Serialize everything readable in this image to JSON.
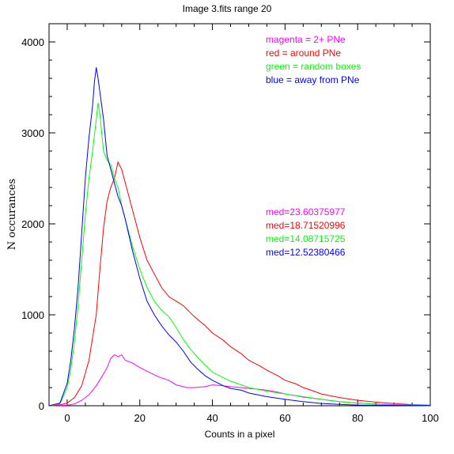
{
  "chart_data": {
    "type": "line",
    "title": "Image 3.fits   range 20",
    "xlabel": "Counts in a pixel",
    "ylabel": "N occurances",
    "xlim": [
      -5,
      100
    ],
    "ylim": [
      0,
      4200
    ],
    "xticks": [
      0,
      20,
      40,
      60,
      80,
      100
    ],
    "yticks": [
      0,
      1000,
      2000,
      3000,
      4000
    ],
    "grid": false,
    "legend_position": "top-right",
    "legend": [
      {
        "text": "magenta = 2+ PNe",
        "color": "#ff00ff"
      },
      {
        "text": "red = around PNe",
        "color": "#ff0000"
      },
      {
        "text": "green = random boxes",
        "color": "#00ff00"
      },
      {
        "text": "blue = away from PNe",
        "color": "#0000ff"
      }
    ],
    "medians": [
      {
        "text": "med=23.60375977",
        "color": "#ff00ff"
      },
      {
        "text": "med=18.71520996",
        "color": "#ff0000"
      },
      {
        "text": "med=14.08715725",
        "color": "#00ff00"
      },
      {
        "text": "med=12.52380466",
        "color": "#0000ff"
      }
    ],
    "series": [
      {
        "color": "#ff00ff",
        "x": [
          -5,
          0,
          2,
          4,
          6,
          8,
          10,
          11,
          12,
          13,
          14,
          15,
          16,
          18,
          20,
          22,
          25,
          28,
          30,
          33,
          35,
          38,
          40,
          43,
          45,
          48,
          50,
          53,
          55,
          58,
          60,
          63,
          65,
          68,
          70,
          73,
          75,
          80,
          85,
          90,
          95,
          100
        ],
        "y": [
          0,
          5,
          20,
          60,
          120,
          220,
          350,
          420,
          520,
          560,
          540,
          560,
          500,
          470,
          420,
          380,
          320,
          280,
          230,
          200,
          200,
          210,
          230,
          220,
          210,
          200,
          190,
          180,
          170,
          150,
          130,
          110,
          95,
          80,
          70,
          55,
          45,
          30,
          20,
          12,
          8,
          5
        ]
      },
      {
        "color": "#ff0000",
        "x": [
          -5,
          -2,
          0,
          2,
          4,
          6,
          7,
          8,
          9,
          10,
          11,
          12,
          13,
          14,
          15,
          16,
          17,
          18,
          19,
          20,
          22,
          24,
          26,
          28,
          30,
          32,
          35,
          38,
          40,
          43,
          45,
          48,
          50,
          53,
          55,
          58,
          60,
          63,
          65,
          68,
          70,
          75,
          80,
          85,
          90,
          95,
          100
        ],
        "y": [
          0,
          10,
          30,
          90,
          220,
          500,
          750,
          1000,
          1500,
          1950,
          2250,
          2400,
          2500,
          2680,
          2600,
          2450,
          2300,
          2150,
          2000,
          1850,
          1600,
          1450,
          1300,
          1200,
          1150,
          1100,
          980,
          880,
          800,
          720,
          650,
          570,
          500,
          440,
          390,
          330,
          280,
          240,
          200,
          160,
          130,
          90,
          60,
          40,
          25,
          12,
          5
        ]
      },
      {
        "color": "#00ff00",
        "x": [
          -5,
          -2,
          0,
          1,
          2,
          3,
          4,
          5,
          6,
          7,
          8,
          8.5,
          9,
          10,
          11,
          12,
          13,
          14,
          15,
          16,
          18,
          20,
          22,
          24,
          26,
          28,
          30,
          32,
          34,
          36,
          38,
          40,
          43,
          45,
          48,
          50,
          55,
          60,
          65,
          70,
          75,
          80,
          85,
          90,
          95,
          100
        ],
        "y": [
          0,
          20,
          200,
          400,
          700,
          1100,
          1600,
          2100,
          2500,
          2800,
          3150,
          3330,
          3200,
          2800,
          2700,
          2650,
          2500,
          2400,
          2200,
          2050,
          1750,
          1500,
          1300,
          1150,
          1050,
          980,
          860,
          730,
          620,
          530,
          450,
          370,
          310,
          270,
          230,
          200,
          160,
          130,
          100,
          70,
          45,
          30,
          18,
          10,
          6,
          3
        ]
      },
      {
        "color": "#0000ff",
        "x": [
          -5,
          -2,
          0,
          1,
          2,
          3,
          4,
          5,
          6,
          7,
          7.5,
          8,
          8.5,
          9,
          10,
          11,
          12,
          13,
          14,
          15,
          16,
          18,
          20,
          22,
          24,
          26,
          28,
          30,
          32,
          34,
          36,
          38,
          40,
          43,
          45,
          48,
          50,
          55,
          60,
          65,
          70,
          75,
          80,
          90,
          100
        ],
        "y": [
          0,
          30,
          250,
          500,
          850,
          1300,
          1900,
          2500,
          2950,
          3300,
          3560,
          3720,
          3600,
          3450,
          3150,
          2750,
          2600,
          2450,
          2300,
          2200,
          2050,
          1700,
          1400,
          1150,
          1000,
          880,
          780,
          700,
          600,
          480,
          400,
          330,
          280,
          220,
          190,
          170,
          140,
          100,
          70,
          45,
          25,
          15,
          8,
          4,
          2
        ]
      }
    ]
  }
}
